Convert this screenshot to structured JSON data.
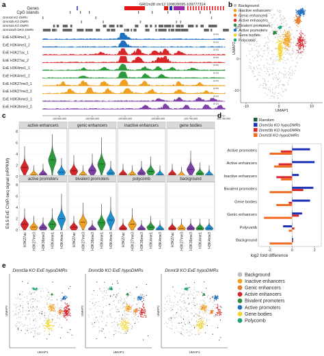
{
  "panels": {
    "a": {
      "label": "a",
      "genome_label": "GRCm38 chr12:109828095-109777314",
      "rows": [
        "Genes",
        "CpG islands",
        "Dnmt3l KO DMRs",
        "Dnmt3b KO DMRs",
        "Dnmt3a KO DMRs",
        "Dnmt3a/b DKO DMRs"
      ],
      "tracks": [
        "ExE H3K4me3_1",
        "ExE H3K4me3_2",
        "ExE H3K27ac_1",
        "ExE H3K27ac_2",
        "ExE H3K4me1_1",
        "ExE H3K4me1_2",
        "ExE H3K27me3_1",
        "ExE H3K27me3_2",
        "ExE H3K36me3_1",
        "ExE H3K36me3_2"
      ],
      "coords": [
        "109,500,000",
        "109,550,000",
        "109,600,000",
        "109,650,000",
        "109,700,000",
        "109,750,000"
      ]
    },
    "b": {
      "label": "b",
      "legend": [
        "Background",
        "Inactive enhancers",
        "Genic enhancers",
        "Active enhancers",
        "Bivalent promoters",
        "Active promoters",
        "Gene bodies",
        "Polycomb"
      ],
      "xlabel": "UMAP1",
      "ylabel": "UMAP2",
      "xticks": [
        "-10",
        "0",
        "10"
      ],
      "yticks": [
        "10",
        "0",
        "-10"
      ]
    },
    "c": {
      "label": "c",
      "ylabel": "E6.5 ExE ChIP-seq signal (nRPKM)",
      "panels_top": [
        "active enhancers",
        "genic enhancers",
        "inactive enhancers",
        "gene bodies"
      ],
      "panels_bottom": [
        "active promoters",
        "bivalent promoters",
        "polycomb",
        "background"
      ],
      "yticks": [
        "8",
        "6",
        "4",
        "2",
        "0"
      ],
      "marks": [
        "H3K27ac",
        "H3K27me3",
        "H3K36me3",
        "H3K4me1",
        "H3K4me3"
      ]
    },
    "d": {
      "label": "d",
      "legend": [
        "Random",
        "Dnmt3a KO hypoDMRs",
        "Dnmt3b KO hypoDMRs",
        "Dnmt3l KO hypoDMRs"
      ],
      "categories": [
        "Active promoters",
        "Active enhancers",
        "Inactive enhancers",
        "Bivalent promoters",
        "Gene bodies",
        "Genic enhancers",
        "Polycomb",
        "Background"
      ],
      "xlabel": "log2 fold difference",
      "xticks": [
        "-2",
        "0",
        "2"
      ]
    },
    "e": {
      "label": "e",
      "titles": [
        "Dnmt3a KO ExE hypoDMRs",
        "Dnmt3b KO ExE hypoDMRs",
        "Dnmt3l KO ExE hypoDMRs"
      ],
      "xlabel": "UMAP1",
      "ylabel": "UMAP2",
      "legend": [
        "Background",
        "Inactive enhancers",
        "Genic enhancers",
        "Active enhancers",
        "Bivalent promoters",
        "Active promoters",
        "Gene bodies",
        "Polycomb"
      ]
    }
  },
  "colors": {
    "background": "#bdbdbd",
    "inactive_enh": "#f0a020",
    "genic_enh": "#e87a2a",
    "active_enh": "#d7262a",
    "bivalent": "#2b8a3e",
    "active_prom": "#1f6fbf",
    "gene_bodies": "#f5d327",
    "polycomb": "#1aa37a",
    "H3K27ac": "#d7262a",
    "H3K27me3": "#f0a020",
    "H3K36me3": "#7b3fa6",
    "H3K4me1": "#2b9a3c",
    "H3K4me3": "#1f8fd0",
    "random": "#1b5e3a",
    "d3a": "#1a2fb5",
    "d3b": "#d7262a",
    "d3l": "#f06a20"
  },
  "chart_data": [
    {
      "type": "bar",
      "title": "",
      "xlabel": "log2 fold difference",
      "categories": [
        "Active promoters",
        "Active enhancers",
        "Inactive enhancers",
        "Bivalent promoters",
        "Gene bodies",
        "Genic enhancers",
        "Polycomb",
        "Background"
      ],
      "series": [
        {
          "name": "Random",
          "values": [
            0.0,
            0.0,
            0.0,
            0.0,
            0.0,
            0.0,
            0.0,
            0.0
          ]
        },
        {
          "name": "Dnmt3a KO hypoDMRs",
          "values": [
            1.6,
            2.0,
            0.6,
            1.9,
            1.6,
            0.9,
            -0.8,
            0.1
          ]
        },
        {
          "name": "Dnmt3b KO hypoDMRs",
          "values": [
            -1.0,
            -1.2,
            -1.4,
            1.0,
            -0.3,
            0.6,
            0.2,
            0.1
          ]
        },
        {
          "name": "Dnmt3l KO hypoDMRs",
          "values": [
            -2.0,
            -1.6,
            -1.0,
            -2.0,
            -1.4,
            -2.5,
            -0.3,
            -2.0
          ]
        }
      ],
      "xlim": [
        -3,
        2.6
      ],
      "legend": "top-left"
    },
    {
      "type": "violin",
      "ylabel": "E6.5 ExE ChIP-seq signal (nRPKM)",
      "ylim": [
        0,
        8
      ],
      "marks": [
        "H3K27ac",
        "H3K27me3",
        "H3K36me3",
        "H3K4me1",
        "H3K4me3"
      ],
      "medians": {
        "active enhancers": [
          1.6,
          0.3,
          0.4,
          3.0,
          0.8
        ],
        "genic enhancers": [
          1.0,
          0.3,
          1.1,
          2.2,
          0.6
        ],
        "inactive enhancers": [
          0.4,
          0.3,
          0.6,
          0.9,
          0.3
        ],
        "gene bodies": [
          0.4,
          0.2,
          1.3,
          0.5,
          0.3
        ],
        "active promoters": [
          1.0,
          0.5,
          0.4,
          1.0,
          2.0
        ],
        "bivalent promoters": [
          0.5,
          1.4,
          0.2,
          1.3,
          1.8
        ],
        "polycomb": [
          0.3,
          1.0,
          0.2,
          0.5,
          0.2
        ],
        "background": [
          0.3,
          0.3,
          0.3,
          0.3,
          0.3
        ]
      }
    }
  ]
}
